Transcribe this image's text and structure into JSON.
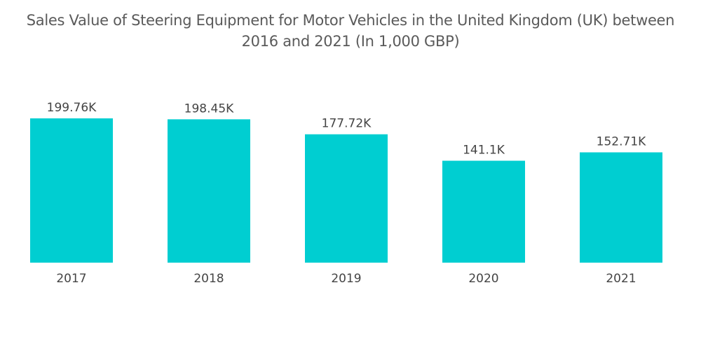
{
  "chart_data": {
    "type": "bar",
    "title": "Sales Value of Steering Equipment for Motor Vehicles in the United Kingdom (UK) between 2016 and 2021 (In 1,000 GBP)",
    "title_lines": [
      "Sales Value of Steering Equipment for Motor Vehicles in the United Kingdom (UK) between",
      "2016 and 2021 (In 1,000 GBP)"
    ],
    "categories": [
      "2017",
      "2018",
      "2019",
      "2020",
      "2021"
    ],
    "values": [
      199.76,
      198.45,
      177.72,
      141.1,
      152.71
    ],
    "data_labels": [
      "199.76K",
      "198.45K",
      "177.72K",
      "141.1K",
      "152.71K"
    ],
    "xlabel": "",
    "ylabel": "",
    "ylim": [
      0,
      199.76
    ],
    "grid": false,
    "legend": "none",
    "bar_color": "#00CED1"
  }
}
